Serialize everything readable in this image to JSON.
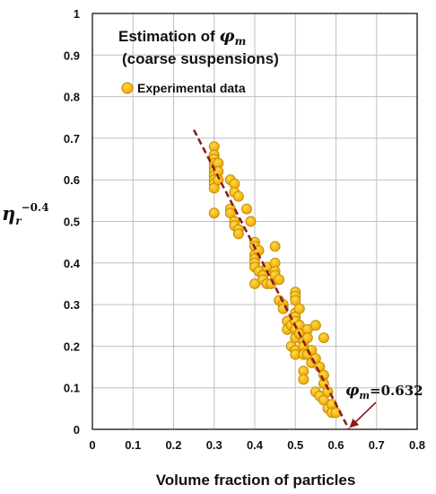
{
  "chart_data": {
    "type": "scatter",
    "title_line1_text": "Estimation of ",
    "title_line1_symbol": "φ",
    "title_line1_sub": "m",
    "title_line2": "(coarse suspensions)",
    "xlabel": "Volume fraction of particles",
    "ylabel_base": "η",
    "ylabel_sub": "r",
    "ylabel_sup": "−0.4",
    "xlim": [
      0,
      0.8
    ],
    "ylim": [
      0,
      1
    ],
    "x_ticks": [
      "0",
      "0.1",
      "0.2",
      "0.3",
      "0.4",
      "0.5",
      "0.6",
      "0.7",
      "0.8"
    ],
    "y_ticks": [
      "0",
      "0.1",
      "0.2",
      "0.3",
      "0.4",
      "0.5",
      "0.6",
      "0.7",
      "0.8",
      "0.9",
      "1"
    ],
    "grid": true,
    "legend_position": "top-left",
    "series": [
      {
        "name": "Experimental data",
        "color": "#f5b800",
        "edge_color": "#c08a00",
        "points": [
          [
            0.3,
            0.68
          ],
          [
            0.3,
            0.66
          ],
          [
            0.3,
            0.65
          ],
          [
            0.3,
            0.64
          ],
          [
            0.3,
            0.63
          ],
          [
            0.3,
            0.62
          ],
          [
            0.3,
            0.61
          ],
          [
            0.3,
            0.6
          ],
          [
            0.3,
            0.59
          ],
          [
            0.3,
            0.58
          ],
          [
            0.3,
            0.52
          ],
          [
            0.31,
            0.64
          ],
          [
            0.31,
            0.62
          ],
          [
            0.31,
            0.6
          ],
          [
            0.34,
            0.6
          ],
          [
            0.34,
            0.53
          ],
          [
            0.34,
            0.52
          ],
          [
            0.35,
            0.59
          ],
          [
            0.35,
            0.57
          ],
          [
            0.35,
            0.5
          ],
          [
            0.35,
            0.49
          ],
          [
            0.36,
            0.56
          ],
          [
            0.36,
            0.48
          ],
          [
            0.36,
            0.47
          ],
          [
            0.38,
            0.53
          ],
          [
            0.39,
            0.5
          ],
          [
            0.4,
            0.45
          ],
          [
            0.4,
            0.44
          ],
          [
            0.4,
            0.42
          ],
          [
            0.4,
            0.41
          ],
          [
            0.4,
            0.4
          ],
          [
            0.4,
            0.39
          ],
          [
            0.4,
            0.35
          ],
          [
            0.41,
            0.43
          ],
          [
            0.41,
            0.38
          ],
          [
            0.42,
            0.37
          ],
          [
            0.42,
            0.36
          ],
          [
            0.43,
            0.39
          ],
          [
            0.43,
            0.35
          ],
          [
            0.44,
            0.35
          ],
          [
            0.45,
            0.44
          ],
          [
            0.45,
            0.4
          ],
          [
            0.45,
            0.38
          ],
          [
            0.45,
            0.37
          ],
          [
            0.46,
            0.36
          ],
          [
            0.46,
            0.31
          ],
          [
            0.47,
            0.3
          ],
          [
            0.47,
            0.29
          ],
          [
            0.48,
            0.26
          ],
          [
            0.48,
            0.24
          ],
          [
            0.49,
            0.25
          ],
          [
            0.49,
            0.2
          ],
          [
            0.5,
            0.33
          ],
          [
            0.5,
            0.32
          ],
          [
            0.5,
            0.31
          ],
          [
            0.5,
            0.28
          ],
          [
            0.5,
            0.27
          ],
          [
            0.5,
            0.26
          ],
          [
            0.5,
            0.24
          ],
          [
            0.5,
            0.22
          ],
          [
            0.5,
            0.19
          ],
          [
            0.5,
            0.18
          ],
          [
            0.51,
            0.29
          ],
          [
            0.51,
            0.25
          ],
          [
            0.51,
            0.23
          ],
          [
            0.52,
            0.21
          ],
          [
            0.52,
            0.2
          ],
          [
            0.52,
            0.18
          ],
          [
            0.52,
            0.14
          ],
          [
            0.52,
            0.12
          ],
          [
            0.53,
            0.24
          ],
          [
            0.53,
            0.22
          ],
          [
            0.53,
            0.18
          ],
          [
            0.54,
            0.19
          ],
          [
            0.54,
            0.16
          ],
          [
            0.55,
            0.25
          ],
          [
            0.55,
            0.17
          ],
          [
            0.55,
            0.09
          ],
          [
            0.56,
            0.15
          ],
          [
            0.56,
            0.08
          ],
          [
            0.57,
            0.22
          ],
          [
            0.57,
            0.13
          ],
          [
            0.57,
            0.11
          ],
          [
            0.57,
            0.07
          ],
          [
            0.58,
            0.09
          ],
          [
            0.58,
            0.05
          ],
          [
            0.59,
            0.06
          ],
          [
            0.59,
            0.04
          ],
          [
            0.6,
            0.04
          ]
        ]
      }
    ],
    "fit_line": {
      "style": "dashed",
      "color": "#8b1a1a",
      "x": [
        0.25,
        0.632
      ],
      "y": [
        0.72,
        0.0
      ]
    },
    "annotation": {
      "symbol": "φ",
      "sub": "m",
      "text": "=0.632",
      "point": [
        0.632,
        0.0
      ]
    }
  }
}
